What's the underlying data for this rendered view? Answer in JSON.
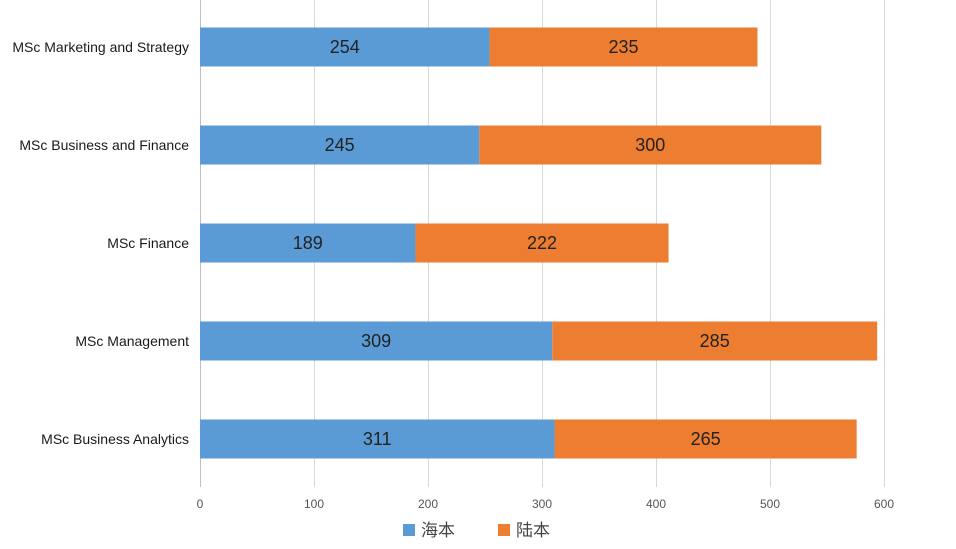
{
  "chart_data": {
    "type": "bar",
    "orientation": "horizontal",
    "stacked": true,
    "categories": [
      "MSc Marketing and Strategy",
      "MSc Business and Finance",
      "MSc Finance",
      "MSc Management",
      "MSc Business Analytics"
    ],
    "series": [
      {
        "name": "海本",
        "color": "#5b9bd5",
        "values": [
          254,
          245,
          189,
          309,
          311
        ]
      },
      {
        "name": "陆本",
        "color": "#ed7d31",
        "values": [
          235,
          300,
          222,
          285,
          265
        ]
      }
    ],
    "xlim": [
      0,
      600
    ],
    "xticks": [
      0,
      100,
      200,
      300,
      400,
      500,
      600
    ],
    "grid": true,
    "legend_position": "bottom"
  }
}
